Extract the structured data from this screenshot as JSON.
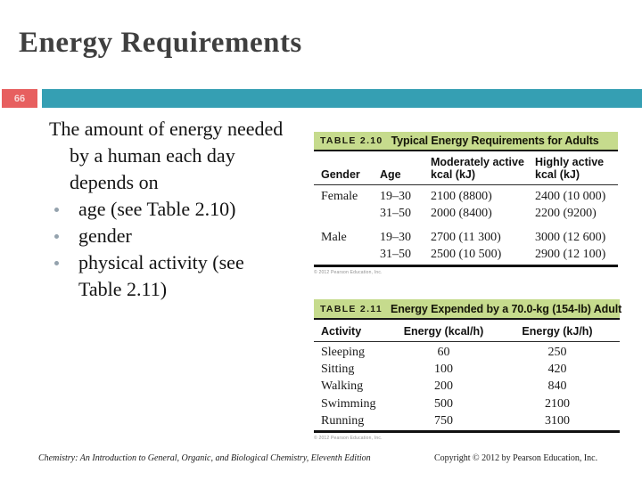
{
  "slide": {
    "title": "Energy Requirements",
    "page_number": "66",
    "intro_lines": [
      "The amount of energy needed",
      "by a human each day",
      "depends on"
    ],
    "bullets": [
      "age (see Table 2.10)",
      "gender",
      "physical activity (see Table 2.11)"
    ],
    "footer": {
      "book": "Chemistry: An Introduction to General, Organic, and Biological Chemistry, Eleventh Edition",
      "copyright": "Copyright © 2012 by Pearson Education, Inc."
    }
  },
  "tables": {
    "t210": {
      "tag": "TABLE 2.10",
      "title": "Typical Energy Requirements for Adults",
      "headers": {
        "gender": "Gender",
        "age": "Age",
        "moderate_1": "Moderately active",
        "moderate_2": "kcal (kJ)",
        "high_1": "Highly active",
        "high_2": "kcal (kJ)"
      },
      "rows": [
        [
          "Female",
          "19–30",
          "2100 (8800)",
          "2400 (10 000)"
        ],
        [
          "",
          "31–50",
          "2000 (8400)",
          "2200 (9200)"
        ],
        [
          "Male",
          "19–30",
          "2700 (11 300)",
          "3000 (12 600)"
        ],
        [
          "",
          "31–50",
          "2500 (10 500)",
          "2900 (12 100)"
        ]
      ],
      "credit": "© 2012 Pearson Education, Inc."
    },
    "t211": {
      "tag": "TABLE 2.11",
      "title": "Energy Expended by a 70.0-kg (154-lb) Adult",
      "headers": [
        "Activity",
        "Energy (kcal/h)",
        "Energy (kJ/h)"
      ],
      "rows": [
        [
          "Sleeping",
          "60",
          "250"
        ],
        [
          "Sitting",
          "100",
          "420"
        ],
        [
          "Walking",
          "200",
          "840"
        ],
        [
          "Swimming",
          "500",
          "2100"
        ],
        [
          "Running",
          "750",
          "3100"
        ]
      ],
      "credit": "© 2012 Pearson Education, Inc."
    }
  },
  "colors": {
    "accent_teal": "#359fb3",
    "accent_red": "#e75f5f",
    "table_band_green": "#c6db8d",
    "title_gray": "#3f3f3f"
  }
}
